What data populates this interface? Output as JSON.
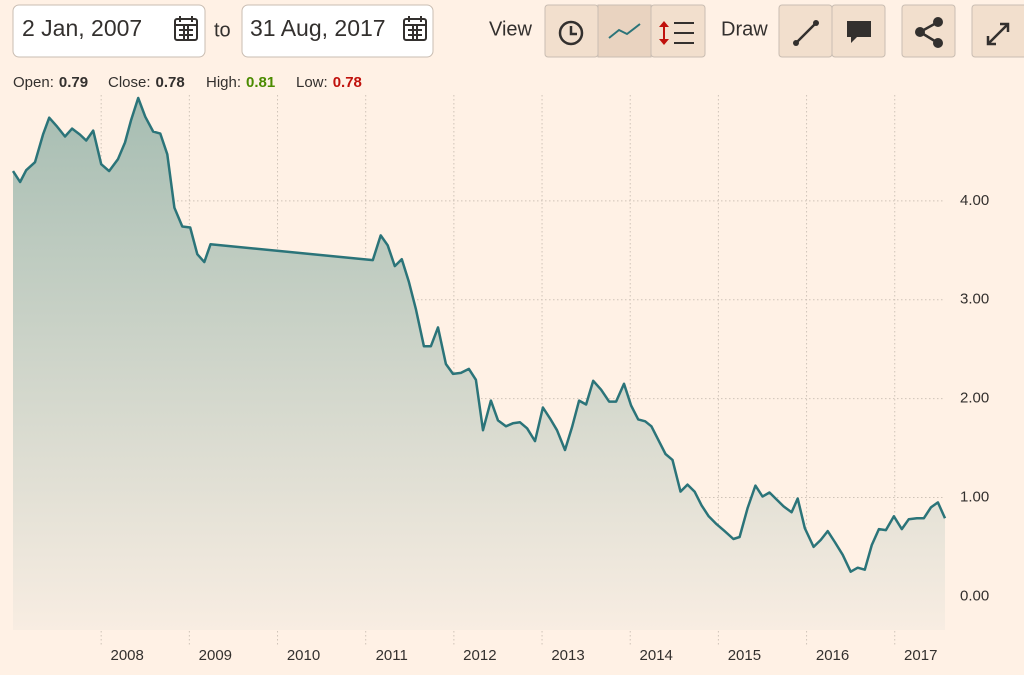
{
  "toolbar": {
    "from_date": "2 Jan, 2007",
    "to_label": "to",
    "to_date": "31 Aug, 2017",
    "view_label": "View",
    "draw_label": "Draw"
  },
  "ohlc": [
    {
      "label": "Open:",
      "value": "0.79"
    },
    {
      "label": "Close:",
      "value": "0.78"
    },
    {
      "label": "High:",
      "value": "0.81"
    },
    {
      "label": "Low:",
      "value": "0.78"
    }
  ],
  "chart_data": {
    "type": "area",
    "x": [
      2007.0,
      2007.08,
      2007.15,
      2007.25,
      2007.34,
      2007.41,
      2007.5,
      2007.59,
      2007.67,
      2007.76,
      2007.83,
      2007.91,
      2008.0,
      2008.09,
      2008.19,
      2008.27,
      2008.34,
      2008.42,
      2008.5,
      2008.59,
      2008.67,
      2008.75,
      2008.83,
      2008.92,
      2009.01,
      2009.09,
      2009.17,
      2009.24,
      2011.08,
      2011.17,
      2011.25,
      2011.33,
      2011.41,
      2011.49,
      2011.57,
      2011.66,
      2011.74,
      2011.82,
      2011.91,
      2011.99,
      2012.08,
      2012.17,
      2012.25,
      2012.33,
      2012.42,
      2012.5,
      2012.59,
      2012.67,
      2012.75,
      2012.83,
      2012.92,
      2013.01,
      2013.09,
      2013.17,
      2013.26,
      2013.34,
      2013.42,
      2013.5,
      2013.58,
      2013.67,
      2013.76,
      2013.84,
      2013.93,
      2014.01,
      2014.09,
      2014.17,
      2014.24,
      2014.32,
      2014.4,
      2014.48,
      2014.57,
      2014.65,
      2014.73,
      2014.81,
      2014.89,
      2014.98,
      2015.07,
      2015.17,
      2015.24,
      2015.33,
      2015.42,
      2015.5,
      2015.58,
      2015.66,
      2015.74,
      2015.83,
      2015.9,
      2015.98,
      2016.08,
      2016.16,
      2016.24,
      2016.32,
      2016.41,
      2016.5,
      2016.58,
      2016.66,
      2016.74,
      2016.82,
      2016.9,
      2016.99,
      2017.08,
      2017.16,
      2017.25,
      2017.33,
      2017.41,
      2017.49,
      2017.57
    ],
    "series": [
      {
        "color": "#2b7479",
        "values": [
          4.3,
          4.19,
          4.31,
          4.39,
          4.67,
          4.84,
          4.75,
          4.65,
          4.73,
          4.67,
          4.61,
          4.71,
          4.37,
          4.3,
          4.42,
          4.59,
          4.82,
          5.04,
          4.85,
          4.7,
          4.68,
          4.47,
          3.93,
          3.74,
          3.73,
          3.46,
          3.38,
          3.56,
          3.4,
          3.65,
          3.55,
          3.34,
          3.41,
          3.18,
          2.9,
          2.53,
          2.53,
          2.72,
          2.35,
          2.25,
          2.26,
          2.3,
          2.19,
          1.68,
          1.98,
          1.78,
          1.72,
          1.75,
          1.76,
          1.7,
          1.57,
          1.91,
          1.8,
          1.68,
          1.48,
          1.71,
          1.98,
          1.94,
          2.18,
          2.09,
          1.97,
          1.97,
          2.15,
          1.93,
          1.79,
          1.77,
          1.72,
          1.58,
          1.44,
          1.38,
          1.06,
          1.13,
          1.06,
          0.92,
          0.81,
          0.73,
          0.66,
          0.58,
          0.6,
          0.89,
          1.12,
          1.01,
          1.05,
          0.98,
          0.91,
          0.85,
          0.99,
          0.69,
          0.5,
          0.57,
          0.66,
          0.55,
          0.42,
          0.25,
          0.29,
          0.27,
          0.52,
          0.68,
          0.67,
          0.81,
          0.68,
          0.78,
          0.79,
          0.79,
          0.9,
          0.95,
          0.79
        ]
      }
    ],
    "xlim": [
      2007.0,
      2017.57
    ],
    "xticks": [
      2008,
      2009,
      2010,
      2011,
      2012,
      2013,
      2014,
      2015,
      2016,
      2017
    ],
    "ylim": [
      -0.34,
      5.07
    ],
    "yticks": [
      {
        "value": 0,
        "label": "0.00"
      },
      {
        "value": 1,
        "label": "1.00"
      },
      {
        "value": 2,
        "label": "2.00"
      },
      {
        "value": 3,
        "label": "3.00"
      },
      {
        "value": 4,
        "label": "4.00"
      }
    ],
    "grid": true
  }
}
